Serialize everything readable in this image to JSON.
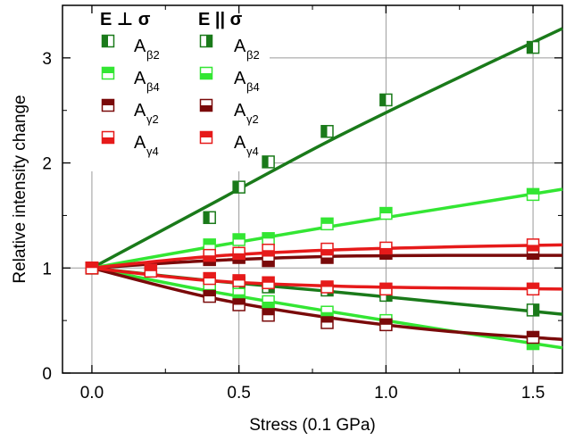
{
  "chart_data": {
    "type": "scatter",
    "title": "",
    "xlabel": "Stress (0.1 GPa)",
    "ylabel": "Relative intensity change",
    "xlim": [
      -0.1,
      1.6
    ],
    "ylim": [
      0,
      3.5
    ],
    "xticks": [
      "0.0",
      "0.5",
      "1.0",
      "1.5"
    ],
    "xtick_values": [
      0.0,
      0.5,
      1.0,
      1.5
    ],
    "yticks": [
      "0",
      "1",
      "2",
      "3"
    ],
    "ytick_values": [
      0,
      1,
      2,
      3
    ],
    "grid": true,
    "legend_placement": "top-left",
    "legend_groups": [
      {
        "symbol_a": "E",
        "symbol_b": "⊥",
        "symbol_c": "σ"
      },
      {
        "symbol_a": "E",
        "symbol_b": "||",
        "symbol_c": "σ"
      }
    ],
    "legend_entries": [
      {
        "base": "A",
        "sub": "β2"
      },
      {
        "base": "A",
        "sub": "β4"
      },
      {
        "base": "A",
        "sub": "γ2"
      },
      {
        "base": "A",
        "sub": "γ4"
      }
    ],
    "colors": {
      "beta2": "#1a7a1a",
      "beta4": "#33e633",
      "gamma2": "#7a0a0a",
      "gamma4": "#e61a1a"
    },
    "series": [
      {
        "mode": "E⊥σ A_β2",
        "color_key": "beta2",
        "fill": "left",
        "x": [
          0.0,
          0.4,
          0.5,
          0.6,
          0.8,
          1.0,
          1.5
        ],
        "y": [
          1.0,
          1.48,
          1.77,
          2.01,
          2.3,
          2.6,
          3.1
        ]
      },
      {
        "mode": "E||σ A_β2",
        "color_key": "beta2",
        "fill": "right",
        "x": [
          0.0,
          0.4,
          0.5,
          0.6,
          0.8,
          1.0,
          1.5
        ],
        "y": [
          1.0,
          0.85,
          0.86,
          0.82,
          0.79,
          0.74,
          0.6
        ]
      },
      {
        "mode": "E⊥σ A_β4",
        "color_key": "beta4",
        "fill": "top",
        "x": [
          0.0,
          0.4,
          0.5,
          0.6,
          0.8,
          1.0,
          1.5
        ],
        "y": [
          1.0,
          1.22,
          1.27,
          1.28,
          1.42,
          1.52,
          1.7
        ]
      },
      {
        "mode": "E||σ A_β4",
        "color_key": "beta4",
        "fill": "bottom",
        "x": [
          0.0,
          0.4,
          0.5,
          0.6,
          0.8,
          1.0,
          1.5
        ],
        "y": [
          1.0,
          0.8,
          0.75,
          0.68,
          0.58,
          0.5,
          0.28
        ]
      },
      {
        "mode": "E⊥σ A_γ2",
        "color_key": "gamma2",
        "fill": "top",
        "x": [
          0.0,
          0.4,
          0.5,
          0.6,
          0.8,
          1.0,
          1.5
        ],
        "y": [
          1.0,
          0.73,
          0.65,
          0.55,
          0.48,
          0.46,
          0.34
        ]
      },
      {
        "mode": "E||σ A_γ2",
        "color_key": "gamma2",
        "fill": "bottom",
        "x": [
          0.0,
          0.4,
          0.5,
          0.6,
          0.8,
          1.0,
          1.5
        ],
        "y": [
          1.0,
          1.08,
          1.1,
          1.07,
          1.1,
          1.14,
          1.14
        ]
      },
      {
        "mode": "E⊥σ A_γ4",
        "color_key": "gamma4",
        "fill": "bottom",
        "x": [
          0.0,
          0.2,
          0.4,
          0.5,
          0.6,
          0.8,
          1.0,
          1.5
        ],
        "y": [
          1.0,
          0.98,
          1.12,
          1.14,
          1.17,
          1.18,
          1.19,
          1.22
        ]
      },
      {
        "mode": "E||σ A_γ4",
        "color_key": "gamma4",
        "fill": "top",
        "x": [
          0.0,
          0.2,
          0.4,
          0.5,
          0.6,
          0.8,
          1.0,
          1.5
        ],
        "y": [
          1.0,
          0.97,
          0.9,
          0.88,
          0.86,
          0.82,
          0.8,
          0.8
        ]
      }
    ],
    "fit_curves": [
      {
        "color_key": "beta2",
        "x": [
          0.0,
          0.4,
          0.8,
          1.2,
          1.6
        ],
        "y": [
          1.0,
          1.6,
          2.2,
          2.75,
          3.28
        ]
      },
      {
        "color_key": "beta2",
        "x": [
          0.0,
          0.4,
          0.8,
          1.2,
          1.6
        ],
        "y": [
          1.0,
          0.88,
          0.78,
          0.67,
          0.56
        ]
      },
      {
        "color_key": "beta4",
        "x": [
          0.0,
          0.4,
          0.8,
          1.2,
          1.6
        ],
        "y": [
          1.0,
          1.2,
          1.39,
          1.57,
          1.75
        ]
      },
      {
        "color_key": "beta4",
        "x": [
          0.0,
          0.4,
          0.8,
          1.2,
          1.6
        ],
        "y": [
          1.0,
          0.78,
          0.59,
          0.41,
          0.24
        ]
      },
      {
        "color_key": "gamma2",
        "x": [
          0.0,
          0.4,
          0.8,
          1.2,
          1.6
        ],
        "y": [
          1.0,
          0.72,
          0.53,
          0.4,
          0.32
        ]
      },
      {
        "color_key": "gamma2",
        "x": [
          0.0,
          0.4,
          0.8,
          1.2,
          1.6
        ],
        "y": [
          1.0,
          1.07,
          1.11,
          1.12,
          1.12
        ]
      },
      {
        "color_key": "gamma4",
        "x": [
          0.0,
          0.4,
          0.8,
          1.2,
          1.6
        ],
        "y": [
          1.0,
          1.11,
          1.17,
          1.2,
          1.22
        ]
      },
      {
        "color_key": "gamma4",
        "x": [
          0.0,
          0.4,
          0.8,
          1.2,
          1.6
        ],
        "y": [
          1.0,
          0.88,
          0.83,
          0.81,
          0.8
        ]
      }
    ]
  }
}
